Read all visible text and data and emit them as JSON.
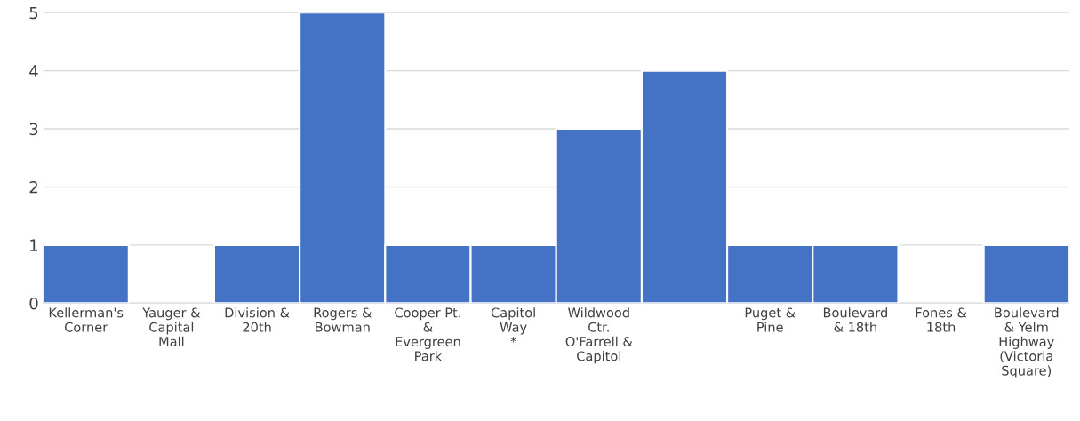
{
  "chart_data": {
    "type": "bar",
    "categories": [
      "Kellerman's\nCorner",
      "Yauger &\nCapital\nMall",
      "Division &\n20th",
      "Rogers &\nBowman",
      "Cooper Pt.\n&\nEvergreen\nPark",
      "Capitol\nWay\n*",
      "Wildwood\nCtr.\nO'Farrell &\nCapitol",
      null,
      "Puget &\nPine",
      "Boulevard\n& 18th",
      "Fones &\n18th",
      "Boulevard\n& Yelm\nHighway\n(Victoria\nSquare)"
    ],
    "values": [
      1,
      0,
      1,
      5,
      1,
      1,
      3,
      4,
      1,
      1,
      0,
      1
    ],
    "color": "#4472c4",
    "ylim": [
      0,
      5
    ],
    "yticks": [
      0,
      1,
      2,
      3,
      4,
      5
    ],
    "grid": "y"
  }
}
